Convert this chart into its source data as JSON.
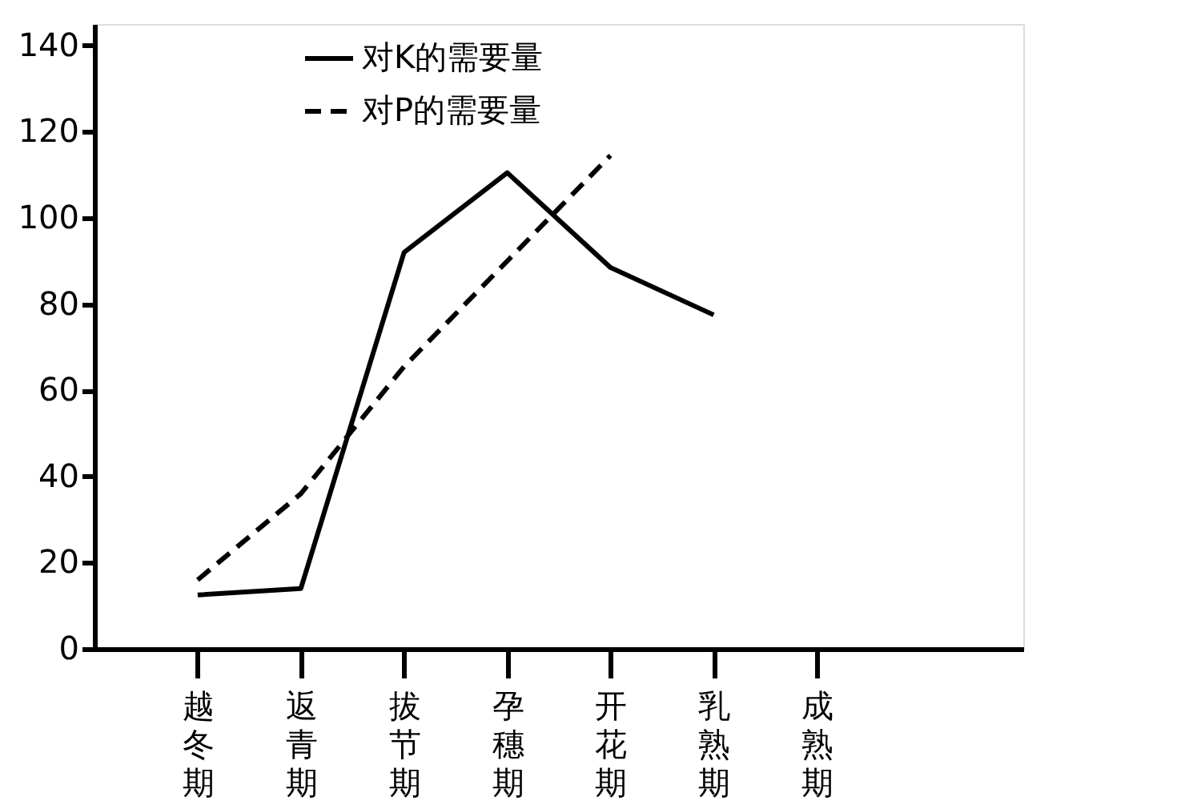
{
  "chart_data": {
    "type": "line",
    "legend": "top",
    "grid": false,
    "marker": "none",
    "categories": [
      "越冬期",
      "返青期",
      "拔节期",
      "孕穗期",
      "开花期",
      "乳熟期",
      "成熟期"
    ],
    "ylim": [
      0,
      145
    ],
    "yticks": [
      0,
      20,
      40,
      60,
      80,
      100,
      120,
      140
    ],
    "series": [
      {
        "name": "对K的需要量",
        "color": "#000000",
        "line_style": "solid",
        "values": [
          12.5,
          14,
          92,
          110.5,
          88.5,
          77.5,
          null
        ]
      },
      {
        "name": "对P的需要量",
        "color": "#000000",
        "line_style": "dashed",
        "values": [
          16,
          36,
          65.5,
          90,
          114.5,
          null,
          null
        ]
      }
    ]
  }
}
